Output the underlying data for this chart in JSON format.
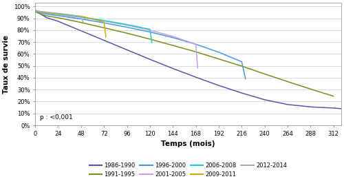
{
  "xlabel": "Temps (mois)",
  "ylabel": "Taux de survie",
  "annotation": "p : <0,001",
  "xlim": [
    0,
    320
  ],
  "ylim": [
    0.0,
    1.03
  ],
  "xticks": [
    0,
    24,
    48,
    72,
    96,
    120,
    144,
    168,
    192,
    216,
    240,
    264,
    288,
    312
  ],
  "yticks": [
    0.0,
    0.1,
    0.2,
    0.3,
    0.4,
    0.5,
    0.6,
    0.7,
    0.8,
    0.9,
    1.0
  ],
  "ytick_labels": [
    "0%",
    "10%",
    "20%",
    "30%",
    "40%",
    "50%",
    "60%",
    "70%",
    "80%",
    "90%",
    "100%"
  ],
  "series": [
    {
      "label": "1986-1990",
      "color": "#5555aa",
      "points": [
        [
          0,
          0.97
        ],
        [
          6,
          0.935
        ],
        [
          12,
          0.905
        ],
        [
          24,
          0.875
        ],
        [
          48,
          0.795
        ],
        [
          72,
          0.715
        ],
        [
          96,
          0.635
        ],
        [
          120,
          0.555
        ],
        [
          144,
          0.478
        ],
        [
          168,
          0.405
        ],
        [
          192,
          0.335
        ],
        [
          216,
          0.272
        ],
        [
          240,
          0.215
        ],
        [
          264,
          0.175
        ],
        [
          288,
          0.155
        ],
        [
          312,
          0.145
        ],
        [
          320,
          0.14
        ]
      ]
    },
    {
      "label": "1991-1995",
      "color": "#7a8c1e",
      "points": [
        [
          0,
          0.955
        ],
        [
          6,
          0.935
        ],
        [
          12,
          0.92
        ],
        [
          24,
          0.905
        ],
        [
          48,
          0.865
        ],
        [
          72,
          0.82
        ],
        [
          96,
          0.775
        ],
        [
          120,
          0.725
        ],
        [
          144,
          0.672
        ],
        [
          168,
          0.618
        ],
        [
          192,
          0.558
        ],
        [
          216,
          0.498
        ],
        [
          240,
          0.432
        ],
        [
          264,
          0.368
        ],
        [
          288,
          0.305
        ],
        [
          312,
          0.245
        ]
      ]
    },
    {
      "label": "1996-2000",
      "color": "#4499dd",
      "points": [
        [
          0,
          0.962
        ],
        [
          6,
          0.945
        ],
        [
          12,
          0.935
        ],
        [
          24,
          0.922
        ],
        [
          48,
          0.895
        ],
        [
          72,
          0.862
        ],
        [
          96,
          0.825
        ],
        [
          120,
          0.785
        ],
        [
          144,
          0.738
        ],
        [
          168,
          0.682
        ],
        [
          192,
          0.615
        ],
        [
          216,
          0.535
        ],
        [
          220,
          0.39
        ]
      ]
    },
    {
      "label": "2001-2005",
      "color": "#c8a0d8",
      "points": [
        [
          0,
          0.963
        ],
        [
          6,
          0.95
        ],
        [
          12,
          0.942
        ],
        [
          24,
          0.932
        ],
        [
          48,
          0.908
        ],
        [
          72,
          0.878
        ],
        [
          96,
          0.842
        ],
        [
          120,
          0.8
        ],
        [
          144,
          0.748
        ],
        [
          168,
          0.682
        ],
        [
          170,
          0.48
        ]
      ]
    },
    {
      "label": "2006-2008",
      "color": "#22cccc",
      "points": [
        [
          0,
          0.965
        ],
        [
          6,
          0.952
        ],
        [
          12,
          0.945
        ],
        [
          24,
          0.935
        ],
        [
          48,
          0.912
        ],
        [
          72,
          0.882
        ],
        [
          96,
          0.848
        ],
        [
          120,
          0.808
        ],
        [
          122,
          0.695
        ]
      ]
    },
    {
      "label": "2009-2011",
      "color": "#ccaa00",
      "points": [
        [
          0,
          0.965
        ],
        [
          6,
          0.955
        ],
        [
          12,
          0.948
        ],
        [
          24,
          0.938
        ],
        [
          48,
          0.918
        ],
        [
          60,
          0.895
        ],
        [
          72,
          0.868
        ],
        [
          74,
          0.742
        ]
      ]
    },
    {
      "label": "2012-2014",
      "color": "#aaaaaa",
      "points": [
        [
          0,
          0.965
        ],
        [
          6,
          0.958
        ],
        [
          12,
          0.952
        ],
        [
          24,
          0.942
        ],
        [
          36,
          0.93
        ],
        [
          48,
          0.915
        ],
        [
          50,
          0.87
        ]
      ]
    }
  ],
  "background_color": "#ffffff",
  "grid_color": "#cccccc",
  "legend_row1": [
    "1986-1990",
    "1991-1995",
    "1996-2000",
    "2001-2005"
  ],
  "legend_row2": [
    "2006-2008",
    "2009-2011",
    "2012-2014"
  ]
}
